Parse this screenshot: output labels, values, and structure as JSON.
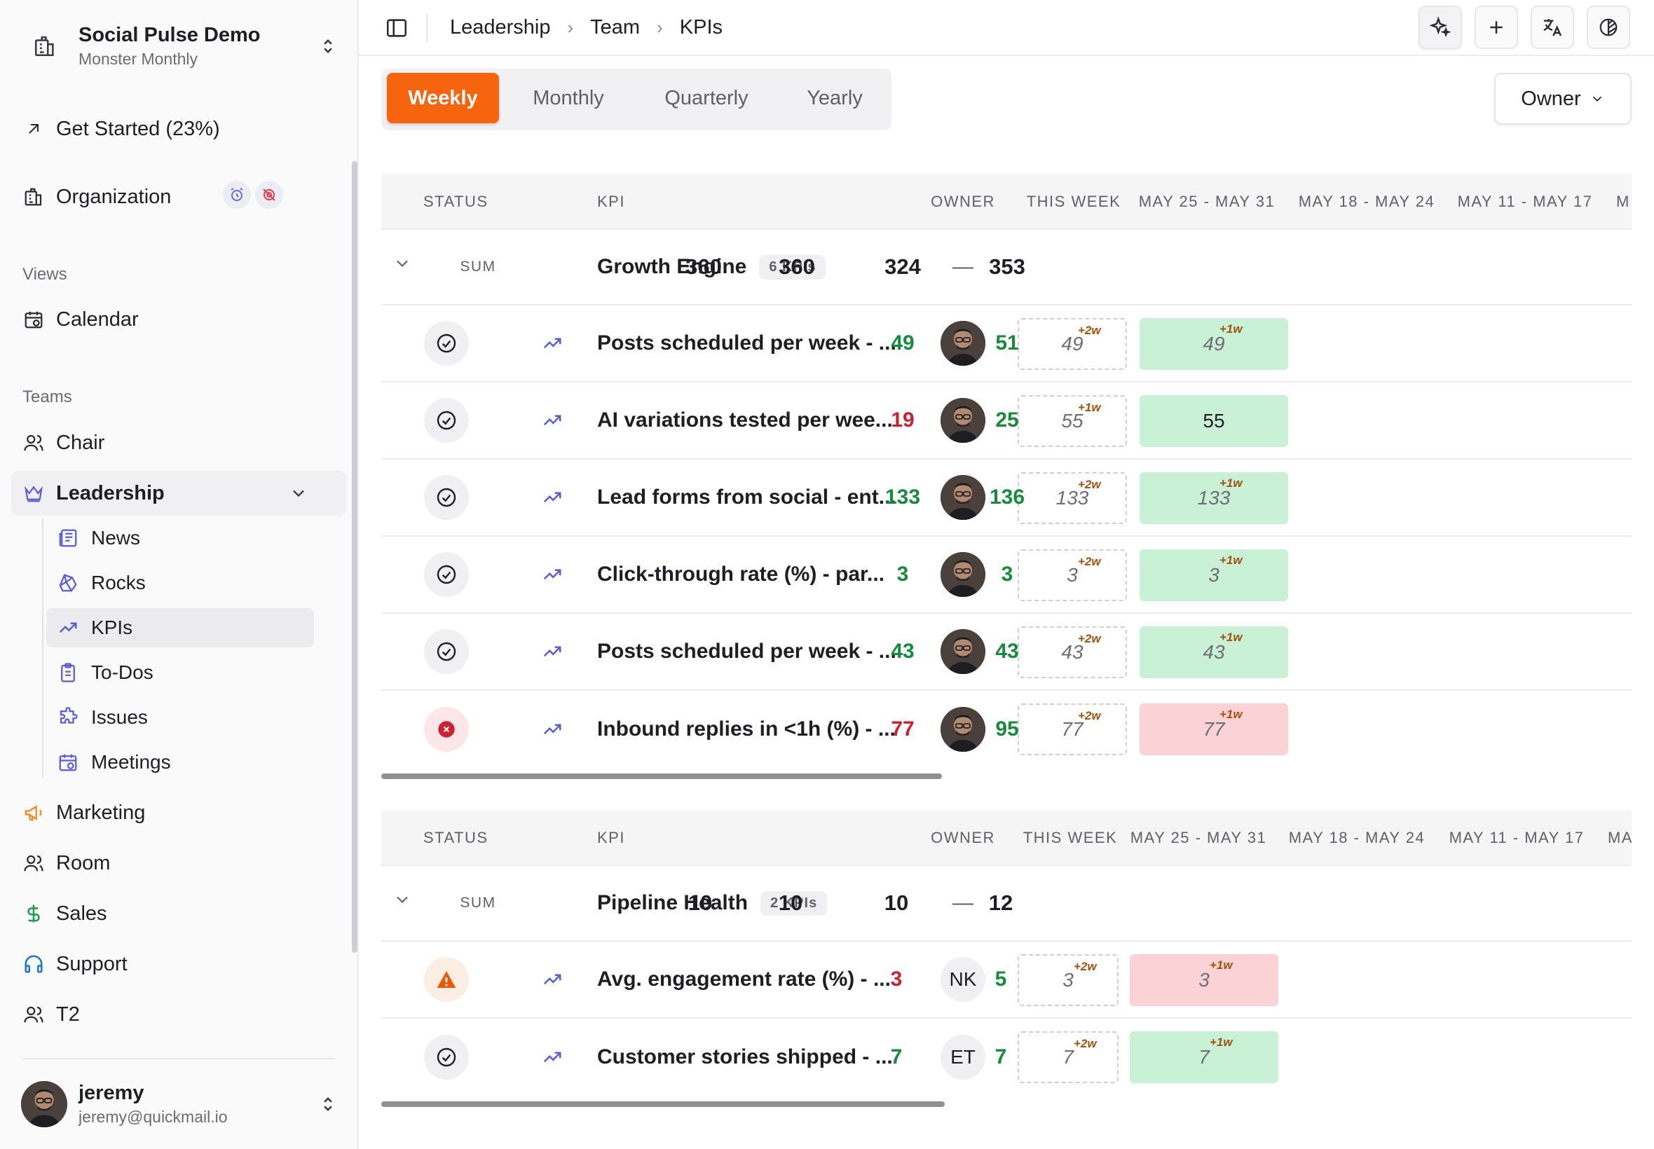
{
  "workspace": {
    "name": "Social Pulse Demo",
    "subtitle": "Monster Monthly"
  },
  "sidebar": {
    "get_started": "Get Started (23%)",
    "organization": "Organization",
    "views_label": "Views",
    "calendar": "Calendar",
    "teams_label": "Teams",
    "teams": [
      {
        "label": "Chair"
      },
      {
        "label": "Leadership"
      },
      {
        "label": "Marketing"
      },
      {
        "label": "Room"
      },
      {
        "label": "Sales"
      },
      {
        "label": "Support"
      },
      {
        "label": "T2"
      }
    ],
    "leadership_items": [
      {
        "label": "News"
      },
      {
        "label": "Rocks"
      },
      {
        "label": "KPIs"
      },
      {
        "label": "To-Dos"
      },
      {
        "label": "Issues"
      },
      {
        "label": "Meetings"
      }
    ]
  },
  "user": {
    "name": "jeremy",
    "email": "jeremy@quickmail.io"
  },
  "breadcrumb": [
    "Leadership",
    "Team",
    "KPIs"
  ],
  "period_tabs": [
    "Weekly",
    "Monthly",
    "Quarterly",
    "Yearly"
  ],
  "active_tab": "Weekly",
  "owner_filter": "Owner",
  "colors": {
    "accent": "#f7640e",
    "good": "#178a3c",
    "bad": "#c7232f"
  },
  "tables": [
    {
      "headers": {
        "status": "STATUS",
        "kpi": "KPI",
        "owner": "OWNER",
        "this_week": "THIS WEEK",
        "w1": "MAY 25 - MAY 31",
        "w2": "MAY 18 - MAY 24",
        "w3": "MAY 11 - MAY 17",
        "w4": "M"
      },
      "sum_label": "SUM",
      "group_name": "Growth Engine",
      "group_count": "6 KPIs",
      "owner": "—",
      "sums": [
        "360",
        "360",
        "324",
        "353"
      ],
      "rows": [
        {
          "status": "on-track",
          "name": "Posts scheduled per week - ...",
          "owner": "avatar",
          "this_week": "49",
          "this_week_tag": "+2w",
          "w1": "49",
          "w1_tag": "+1w",
          "w1_state": "ok",
          "w2": "49",
          "w2_state": "good",
          "w3": "51",
          "w3_state": "good"
        },
        {
          "status": "on-track",
          "name": "AI variations tested per wee...",
          "owner": "avatar",
          "this_week": "55",
          "this_week_tag": "+1w",
          "w1": "55",
          "w1_tag": "",
          "w1_state": "ok",
          "w2": "19",
          "w2_state": "bad",
          "w3": "25",
          "w3_state": "good"
        },
        {
          "status": "on-track",
          "name": "Lead forms from social - ent...",
          "owner": "avatar",
          "this_week": "133",
          "this_week_tag": "+2w",
          "w1": "133",
          "w1_tag": "+1w",
          "w1_state": "ok",
          "w2": "133",
          "w2_state": "good",
          "w3": "136",
          "w3_state": "good"
        },
        {
          "status": "on-track",
          "name": "Click-through rate (%) - par...",
          "owner": "avatar",
          "this_week": "3",
          "this_week_tag": "+2w",
          "w1": "3",
          "w1_tag": "+1w",
          "w1_state": "ok",
          "w2": "3",
          "w2_state": "good",
          "w3": "3",
          "w3_state": "good"
        },
        {
          "status": "on-track",
          "name": "Posts scheduled per week - ...",
          "owner": "avatar",
          "this_week": "43",
          "this_week_tag": "+2w",
          "w1": "43",
          "w1_tag": "+1w",
          "w1_state": "ok",
          "w2": "43",
          "w2_state": "good",
          "w3": "43",
          "w3_state": "good"
        },
        {
          "status": "off-track",
          "name": "Inbound replies in <1h (%) - ...",
          "owner": "avatar",
          "this_week": "77",
          "this_week_tag": "+2w",
          "w1": "77",
          "w1_tag": "+1w",
          "w1_state": "bad",
          "w2": "77",
          "w2_state": "bad",
          "w3": "95",
          "w3_state": "good"
        }
      ]
    },
    {
      "headers": {
        "status": "STATUS",
        "kpi": "KPI",
        "owner": "OWNER",
        "this_week": "THIS WEEK",
        "w1": "MAY 25 - MAY 31",
        "w2": "MAY 18 - MAY 24",
        "w3": "MAY 11 - MAY 17",
        "w4": "MA"
      },
      "sum_label": "SUM",
      "group_name": "Pipeline Health",
      "group_count": "2 KPIs",
      "owner": "—",
      "sums": [
        "10",
        "10",
        "10",
        "12"
      ],
      "rows": [
        {
          "status": "warning",
          "name": "Avg. engagement rate (%) - ...",
          "owner": "NK",
          "this_week": "3",
          "this_week_tag": "+2w",
          "w1": "3",
          "w1_tag": "+1w",
          "w1_state": "bad",
          "w2": "3",
          "w2_state": "bad",
          "w3": "5",
          "w3_state": "good"
        },
        {
          "status": "on-track",
          "name": "Customer stories shipped - ...",
          "owner": "ET",
          "this_week": "7",
          "this_week_tag": "+2w",
          "w1": "7",
          "w1_tag": "+1w",
          "w1_state": "ok",
          "w2": "7",
          "w2_state": "good",
          "w3": "7",
          "w3_state": "good"
        }
      ]
    }
  ]
}
